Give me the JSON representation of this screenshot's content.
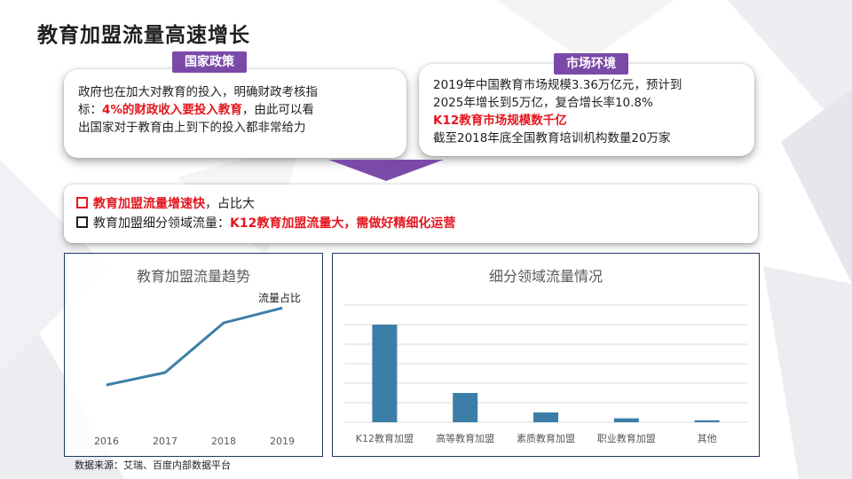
{
  "title": "教育加盟流量高速增长",
  "policy": {
    "tag": "国家政策",
    "line_a": "政府也在加大对教育的投入，明确财政考核指",
    "line_b_pre": "标：",
    "line_b_red": "4%的财政收入要投入教育",
    "line_b_post": "，由此可以看",
    "line_c": "出国家对于教育由上到下的投入都非常给力"
  },
  "market": {
    "tag": "市场环境",
    "line_a": "2019年中国教育市场规模3.36万亿元，预计到",
    "line_b": "2025年增长到5万亿，复合增长率10.8%",
    "line_c_red": "K12教育市场规模数千亿",
    "line_d": "截至2018年底全国教育培训机构数量20万家"
  },
  "summary": {
    "b1_red": "教育加盟流量增速快",
    "b1_rest": "，占比大",
    "b2_pre": "教育加盟细分领域流量：",
    "b2_red": "K12教育加盟流量大，需做好精细化运营"
  },
  "source": "数据来源：艾瑞、百度内部数据平台",
  "colors": {
    "accent": "#7b4aa8",
    "highlight": "#e4161f",
    "series": "#3b7ea8",
    "frame": "#1f3864"
  },
  "chart_data": [
    {
      "type": "line",
      "title": "教育加盟流量趋势",
      "x": [
        "2016",
        "2017",
        "2018",
        "2019"
      ],
      "series": [
        {
          "name": "流量占比",
          "values": [
            0.3,
            0.4,
            0.8,
            0.92
          ]
        }
      ],
      "ylim": [
        0,
        1
      ],
      "grid": false,
      "y_axis_labels": false
    },
    {
      "type": "bar",
      "title": "细分领域流量情况",
      "categories": [
        "K12教育加盟",
        "高等教育加盟",
        "素质教育加盟",
        "职业教育加盟",
        "其他"
      ],
      "values": [
        100,
        30,
        10,
        4,
        2
      ],
      "ylim": [
        0,
        120
      ],
      "grid": true,
      "y_axis_labels": false
    }
  ]
}
